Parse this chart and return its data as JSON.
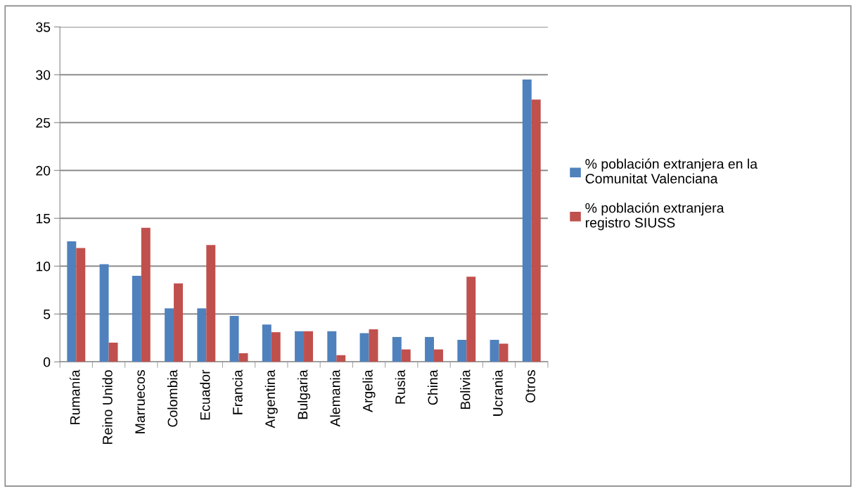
{
  "chart_data": {
    "type": "bar",
    "categories": [
      "Rumanía",
      "Reino Unido",
      "Marruecos",
      "Colombia",
      "Ecuador",
      "Francia",
      "Argentina",
      "Bulgaria",
      "Alemania",
      "Argelia",
      "Rusia",
      "China",
      "Bolivia",
      "Ucrania",
      "Otros"
    ],
    "series": [
      {
        "name": "% población extranjera en la Comunitat Valenciana",
        "color": "#4f81bd",
        "values": [
          12.6,
          10.2,
          9.0,
          5.6,
          5.6,
          4.8,
          3.9,
          3.2,
          3.2,
          3.0,
          2.6,
          2.6,
          2.3,
          2.3,
          29.5
        ]
      },
      {
        "name": "% población extranjera registro SIUSS",
        "color": "#c0504d",
        "values": [
          11.9,
          2.0,
          14.0,
          8.2,
          12.2,
          0.9,
          3.1,
          3.2,
          0.7,
          3.4,
          1.3,
          1.3,
          8.9,
          1.9,
          27.4
        ]
      }
    ],
    "ylim": [
      0,
      35
    ],
    "yticks": [
      0,
      5,
      10,
      15,
      20,
      25,
      30,
      35
    ],
    "grid": "y",
    "legend": "right"
  }
}
